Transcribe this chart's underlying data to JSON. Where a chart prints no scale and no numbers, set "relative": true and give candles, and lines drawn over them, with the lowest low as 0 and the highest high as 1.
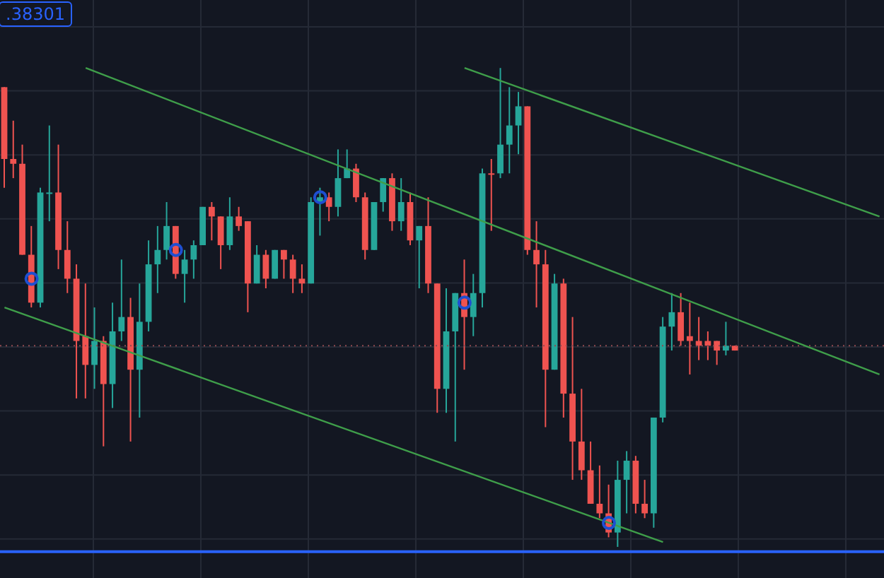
{
  "chart_data": {
    "type": "candlestick",
    "relative": true,
    "grid": true,
    "categories": [
      null,
      null,
      null,
      null,
      null,
      null,
      null,
      null,
      null,
      null,
      null,
      null,
      null,
      null,
      null,
      null,
      null,
      null,
      null,
      null,
      null,
      null,
      null,
      null,
      null,
      null,
      null,
      null,
      null,
      null,
      null,
      null,
      null,
      null,
      null,
      null,
      null,
      null,
      null,
      null,
      null,
      null,
      null,
      null,
      null,
      null,
      null,
      null,
      null,
      null,
      null,
      null,
      null,
      null,
      null,
      null,
      null,
      null,
      null,
      null,
      null,
      null,
      null,
      null,
      null,
      null,
      null,
      null,
      null,
      null,
      null,
      null,
      null,
      null,
      null,
      null,
      null,
      null,
      null,
      null,
      null,
      null,
      null,
      null,
      null,
      null,
      null,
      null,
      null,
      null,
      null,
      null,
      null,
      null,
      null,
      null,
      null,
      null
    ],
    "ohlc": [
      [
        0.96,
        0.96,
        0.75,
        0.81
      ],
      [
        0.81,
        0.89,
        0.77,
        0.8
      ],
      [
        0.8,
        0.84,
        0.61,
        0.61
      ],
      [
        0.61,
        0.67,
        0.5,
        0.51
      ],
      [
        0.51,
        0.75,
        0.5,
        0.74
      ],
      [
        0.74,
        0.88,
        0.68,
        0.74
      ],
      [
        0.74,
        0.84,
        0.58,
        0.62
      ],
      [
        0.62,
        0.68,
        0.53,
        0.56
      ],
      [
        0.56,
        0.59,
        0.31,
        0.43
      ],
      [
        0.44,
        0.55,
        0.31,
        0.38
      ],
      [
        0.38,
        0.5,
        0.33,
        0.43
      ],
      [
        0.43,
        0.44,
        0.21,
        0.34
      ],
      [
        0.34,
        0.51,
        0.29,
        0.45
      ],
      [
        0.45,
        0.6,
        0.43,
        0.48
      ],
      [
        0.48,
        0.52,
        0.22,
        0.37
      ],
      [
        0.37,
        0.55,
        0.27,
        0.47
      ],
      [
        0.47,
        0.64,
        0.45,
        0.59
      ],
      [
        0.59,
        0.67,
        0.53,
        0.62
      ],
      [
        0.62,
        0.72,
        0.6,
        0.67
      ],
      [
        0.67,
        0.67,
        0.56,
        0.57
      ],
      [
        0.57,
        0.62,
        0.51,
        0.6
      ],
      [
        0.6,
        0.64,
        0.56,
        0.63
      ],
      [
        0.63,
        0.71,
        0.63,
        0.71
      ],
      [
        0.71,
        0.72,
        0.64,
        0.69
      ],
      [
        0.69,
        0.69,
        0.58,
        0.63
      ],
      [
        0.63,
        0.73,
        0.62,
        0.69
      ],
      [
        0.69,
        0.71,
        0.66,
        0.67
      ],
      [
        0.68,
        0.68,
        0.49,
        0.55
      ],
      [
        0.55,
        0.63,
        0.55,
        0.61
      ],
      [
        0.61,
        0.62,
        0.54,
        0.56
      ],
      [
        0.56,
        0.62,
        0.56,
        0.62
      ],
      [
        0.62,
        0.62,
        0.56,
        0.6
      ],
      [
        0.6,
        0.61,
        0.53,
        0.56
      ],
      [
        0.56,
        0.59,
        0.53,
        0.55
      ],
      [
        0.55,
        0.73,
        0.55,
        0.72
      ],
      [
        0.72,
        0.75,
        0.65,
        0.73
      ],
      [
        0.73,
        0.74,
        0.68,
        0.71
      ],
      [
        0.71,
        0.83,
        0.69,
        0.77
      ],
      [
        0.77,
        0.83,
        0.77,
        0.79
      ],
      [
        0.79,
        0.8,
        0.72,
        0.73
      ],
      [
        0.73,
        0.74,
        0.6,
        0.62
      ],
      [
        0.62,
        0.72,
        0.62,
        0.72
      ],
      [
        0.72,
        0.77,
        0.7,
        0.77
      ],
      [
        0.77,
        0.78,
        0.66,
        0.68
      ],
      [
        0.68,
        0.77,
        0.66,
        0.72
      ],
      [
        0.72,
        0.74,
        0.63,
        0.64
      ],
      [
        0.64,
        0.67,
        0.54,
        0.67
      ],
      [
        0.67,
        0.73,
        0.53,
        0.55
      ],
      [
        0.55,
        0.55,
        0.28,
        0.33
      ],
      [
        0.33,
        0.54,
        0.28,
        0.45
      ],
      [
        0.45,
        0.53,
        0.22,
        0.53
      ],
      [
        0.53,
        0.6,
        0.37,
        0.48
      ],
      [
        0.48,
        0.57,
        0.44,
        0.53
      ],
      [
        0.53,
        0.79,
        0.5,
        0.78
      ],
      [
        0.78,
        0.81,
        0.66,
        0.78
      ],
      [
        0.78,
        1.0,
        0.77,
        0.84
      ],
      [
        0.84,
        0.96,
        0.78,
        0.88
      ],
      [
        0.88,
        0.95,
        0.82,
        0.92
      ],
      [
        0.92,
        0.92,
        0.61,
        0.62
      ],
      [
        0.62,
        0.68,
        0.5,
        0.59
      ],
      [
        0.59,
        0.62,
        0.25,
        0.37
      ],
      [
        0.37,
        0.57,
        0.37,
        0.55
      ],
      [
        0.55,
        0.56,
        0.27,
        0.32
      ],
      [
        0.32,
        0.48,
        0.14,
        0.22
      ],
      [
        0.22,
        0.33,
        0.14,
        0.16
      ],
      [
        0.16,
        0.22,
        0.09,
        0.09
      ],
      [
        0.09,
        0.17,
        0.06,
        0.07
      ],
      [
        0.07,
        0.13,
        0.02,
        0.03
      ],
      [
        0.03,
        0.18,
        0.0,
        0.14
      ],
      [
        0.14,
        0.2,
        0.07,
        0.18
      ],
      [
        0.18,
        0.19,
        0.07,
        0.09
      ],
      [
        0.09,
        0.14,
        0.06,
        0.07
      ],
      [
        0.07,
        0.27,
        0.04,
        0.27
      ],
      [
        0.27,
        0.48,
        0.26,
        0.46
      ],
      [
        0.46,
        0.53,
        0.41,
        0.49
      ],
      [
        0.49,
        0.53,
        0.42,
        0.43
      ],
      [
        0.44,
        0.51,
        0.36,
        0.43
      ],
      [
        0.43,
        0.48,
        0.39,
        0.42
      ],
      [
        0.43,
        0.45,
        0.39,
        0.42
      ],
      [
        0.43,
        0.43,
        0.38,
        0.41
      ],
      [
        0.41,
        0.47,
        0.4,
        0.42
      ],
      [
        0.42,
        0.42,
        0.41,
        0.41
      ],
      null,
      null,
      null,
      null,
      null,
      null,
      null,
      null,
      null,
      null,
      null,
      null,
      null,
      null,
      null,
      null
    ],
    "colors": [
      "#ef5350",
      "#ef5350",
      "#ef5350",
      "#ef5350",
      "#26a69a",
      "#26a69a",
      "#ef5350",
      "#ef5350",
      "#ef5350",
      "#ef5350",
      "#26a69a",
      "#ef5350",
      "#26a69a",
      "#26a69a",
      "#ef5350",
      "#26a69a",
      "#26a69a",
      "#26a69a",
      "#26a69a",
      "#ef5350",
      "#26a69a",
      "#26a69a",
      "#26a69a",
      "#ef5350",
      "#ef5350",
      "#26a69a",
      "#ef5350",
      "#ef5350",
      "#26a69a",
      "#ef5350",
      "#26a69a",
      "#ef5350",
      "#ef5350",
      "#ef5350",
      "#26a69a",
      "#26a69a",
      "#ef5350",
      "#26a69a",
      "#26a69a",
      "#ef5350",
      "#ef5350",
      "#26a69a",
      "#26a69a",
      "#ef5350",
      "#26a69a",
      "#ef5350",
      "#26a69a",
      "#ef5350",
      "#ef5350",
      "#26a69a",
      "#26a69a",
      "#ef5350",
      "#26a69a",
      "#26a69a",
      "#ef5350",
      "#26a69a",
      "#26a69a",
      "#26a69a",
      "#ef5350",
      "#ef5350",
      "#ef5350",
      "#26a69a",
      "#ef5350",
      "#ef5350",
      "#ef5350",
      "#ef5350",
      "#ef5350",
      "#ef5350",
      "#26a69a",
      "#26a69a",
      "#ef5350",
      "#ef5350",
      "#26a69a",
      "#26a69a",
      "#26a69a",
      "#ef5350",
      "#ef5350",
      "#ef5350",
      "#ef5350",
      "#ef5350",
      "#26a69a",
      "#ef5350",
      null,
      null,
      null,
      null,
      null,
      null,
      null,
      null,
      null,
      null,
      null,
      null,
      null,
      null,
      null,
      null
    ],
    "series": [
      {
        "type": "line",
        "color": "#3f9e4a",
        "values": [
          null,
          null,
          null,
          null,
          null,
          null,
          null,
          null,
          null,
          null,
          null,
          null,
          null,
          null,
          null,
          null,
          null,
          null,
          null,
          null,
          null,
          null,
          null,
          null,
          null,
          null,
          null,
          null,
          null,
          null,
          null,
          null,
          null,
          null,
          null,
          null,
          null,
          null,
          null,
          null,
          null,
          null,
          null,
          null,
          null,
          null,
          null,
          null,
          null,
          null,
          null,
          1.0,
          null,
          null,
          null,
          null,
          null,
          null,
          null,
          null,
          null,
          null,
          null,
          null,
          null,
          null,
          null,
          null,
          null,
          null,
          null,
          null,
          null,
          null,
          null,
          null,
          null,
          null,
          null,
          null,
          null,
          null,
          null,
          null,
          null,
          null,
          null,
          null,
          null,
          null,
          null,
          null,
          null,
          null,
          null,
          null,
          null,
          0.69
        ]
      },
      {
        "type": "line",
        "color": "#3f9e4a",
        "values": [
          null,
          null,
          null,
          null,
          null,
          null,
          null,
          null,
          null,
          1.0,
          null,
          null,
          null,
          null,
          null,
          null,
          null,
          null,
          null,
          null,
          null,
          null,
          null,
          null,
          null,
          null,
          null,
          null,
          null,
          null,
          null,
          null,
          null,
          null,
          null,
          null,
          null,
          null,
          null,
          null,
          null,
          null,
          null,
          null,
          null,
          null,
          null,
          null,
          null,
          null,
          null,
          null,
          null,
          null,
          null,
          null,
          null,
          null,
          null,
          null,
          null,
          null,
          null,
          null,
          null,
          null,
          null,
          null,
          null,
          null,
          null,
          null,
          null,
          null,
          null,
          null,
          null,
          null,
          null,
          null,
          null,
          null,
          null,
          null,
          null,
          null,
          null,
          null,
          null,
          null,
          null,
          null,
          null,
          null,
          null,
          null,
          null,
          0.36
        ]
      },
      {
        "type": "line",
        "color": "#3f9e4a",
        "values": [
          0.5,
          null,
          null,
          null,
          null,
          null,
          null,
          null,
          null,
          null,
          null,
          null,
          null,
          null,
          null,
          null,
          null,
          null,
          null,
          null,
          null,
          null,
          null,
          null,
          null,
          null,
          null,
          null,
          null,
          null,
          null,
          null,
          null,
          null,
          null,
          null,
          null,
          null,
          null,
          null,
          null,
          null,
          null,
          null,
          null,
          null,
          null,
          null,
          null,
          null,
          null,
          null,
          null,
          null,
          null,
          null,
          null,
          null,
          null,
          null,
          null,
          null,
          null,
          null,
          null,
          null,
          null,
          null,
          null,
          null,
          null,
          null,
          null,
          0.01,
          null,
          null,
          null,
          null,
          null,
          null,
          null,
          null,
          null,
          null,
          null,
          null,
          null,
          null,
          null,
          null,
          null,
          null,
          null,
          null,
          null,
          null,
          null,
          null
        ]
      },
      {
        "type": "scatter",
        "color": "#1f4fd1",
        "marker": "circle",
        "values": [
          null,
          null,
          null,
          0.56,
          null,
          null,
          null,
          null,
          null,
          null,
          null,
          null,
          null,
          null,
          null,
          null,
          null,
          null,
          null,
          0.62,
          null,
          null,
          null,
          null,
          null,
          null,
          null,
          null,
          null,
          null,
          null,
          null,
          null,
          null,
          null,
          0.73,
          null,
          null,
          null,
          null,
          null,
          null,
          null,
          null,
          null,
          null,
          null,
          null,
          null,
          null,
          null,
          0.51,
          null,
          null,
          null,
          null,
          null,
          null,
          null,
          null,
          null,
          null,
          null,
          null,
          null,
          null,
          null,
          0.05,
          null,
          null,
          null,
          null,
          null,
          null,
          null,
          null,
          null,
          null,
          null,
          null,
          null,
          null,
          null,
          null,
          null,
          null,
          null,
          null,
          null,
          null,
          null,
          null,
          null,
          null,
          null,
          null,
          null,
          null
        ]
      }
    ],
    "ref_lines": [
      {
        "axis": "y",
        "value": 0.42,
        "color": "#8f4a50",
        "line_style": "dotted"
      },
      {
        "axis": "y",
        "value": -0.01,
        "color": "#2962ff",
        "line_style": "solid"
      }
    ],
    "annotations": [
      ".38301"
    ]
  }
}
